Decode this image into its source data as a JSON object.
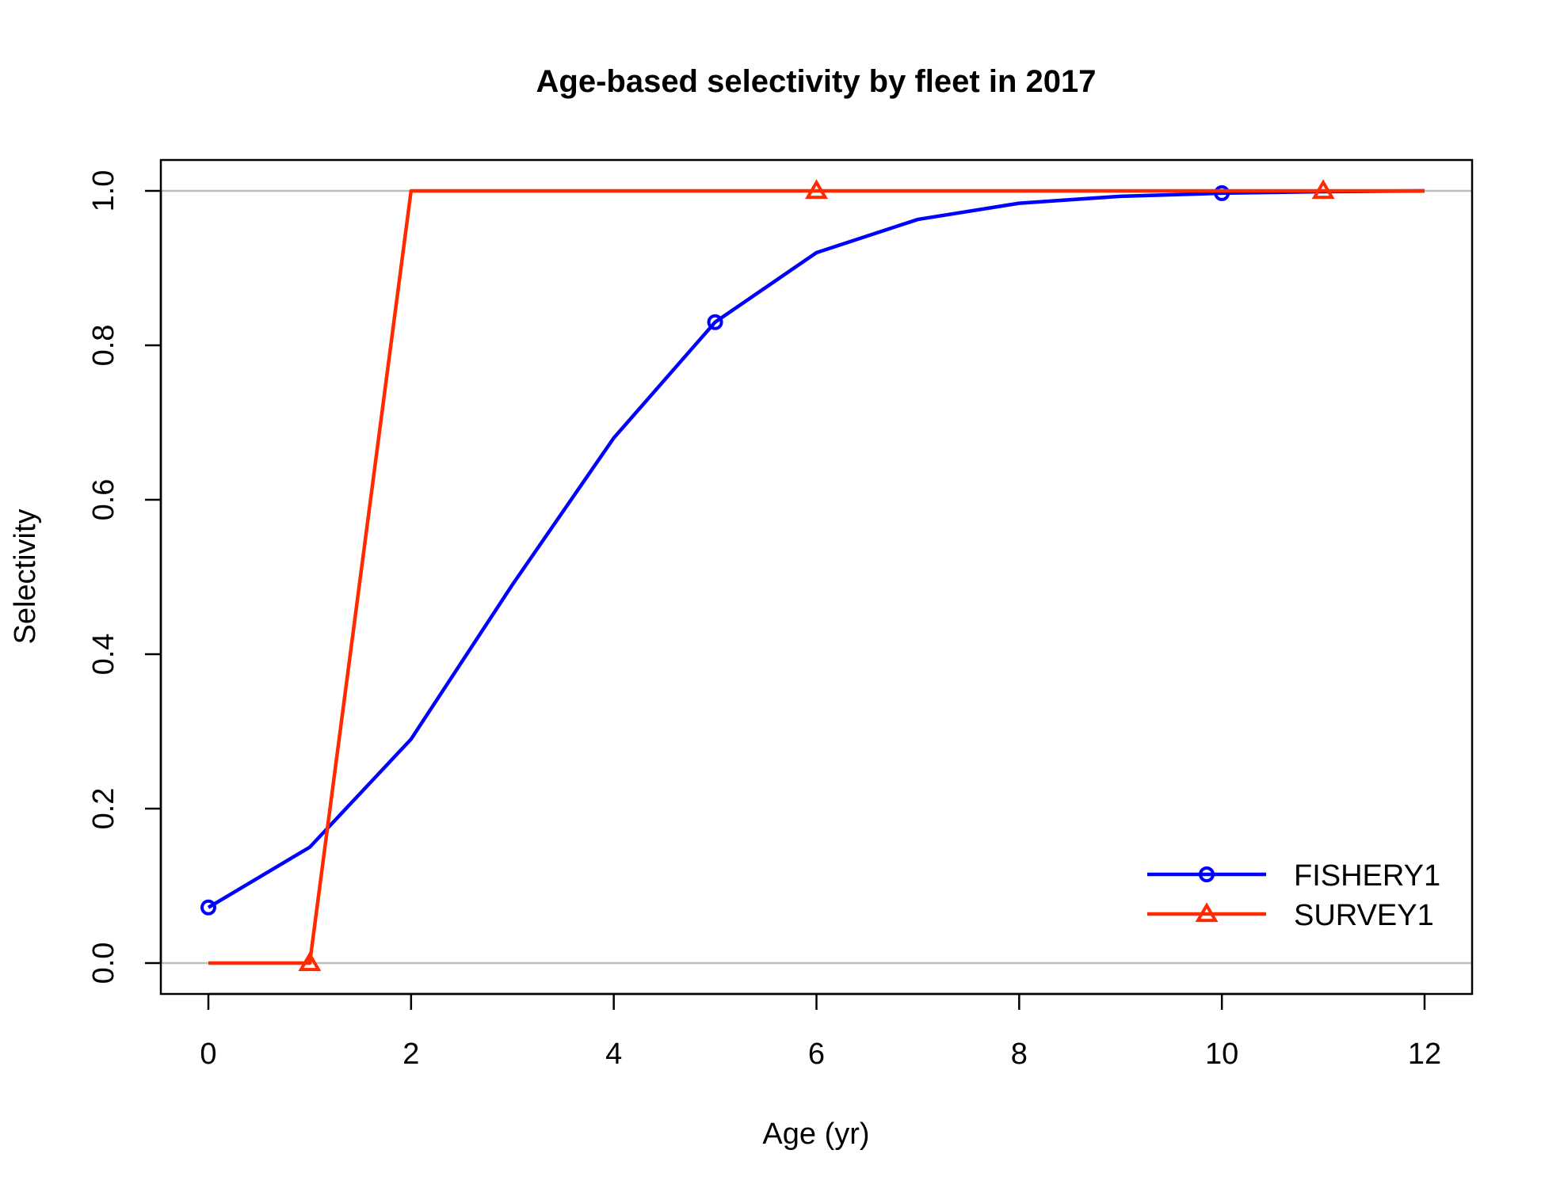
{
  "chart_data": {
    "type": "line",
    "title": "Age-based selectivity by fleet in 2017",
    "xlabel": "Age (yr)",
    "ylabel": "Selectivity",
    "xlim": [
      0,
      12
    ],
    "ylim": [
      0,
      1
    ],
    "x_ticks": [
      "0",
      "2",
      "4",
      "6",
      "8",
      "10",
      "12"
    ],
    "y_ticks": [
      "0.0",
      "0.2",
      "0.4",
      "0.6",
      "0.8",
      "1.0"
    ],
    "reference_lines_y": [
      0,
      1
    ],
    "legend_position": "bottom-right",
    "x": [
      0,
      1,
      2,
      3,
      4,
      5,
      6,
      7,
      8,
      9,
      10,
      11,
      12
    ],
    "series": [
      {
        "name": "FISHERY1",
        "color": "#0000ff",
        "marker": "circle",
        "marker_x": [
          0,
          5,
          10
        ],
        "values": [
          0.072,
          0.15,
          0.29,
          0.49,
          0.68,
          0.83,
          0.92,
          0.963,
          0.984,
          0.993,
          0.997,
          0.999,
          1.0
        ]
      },
      {
        "name": "SURVEY1",
        "color": "#ff2a00",
        "marker": "triangle",
        "marker_x": [
          1,
          6,
          11
        ],
        "values": [
          0.0,
          0.0,
          1.0,
          1.0,
          1.0,
          1.0,
          1.0,
          1.0,
          1.0,
          1.0,
          1.0,
          1.0,
          1.0
        ]
      }
    ]
  }
}
